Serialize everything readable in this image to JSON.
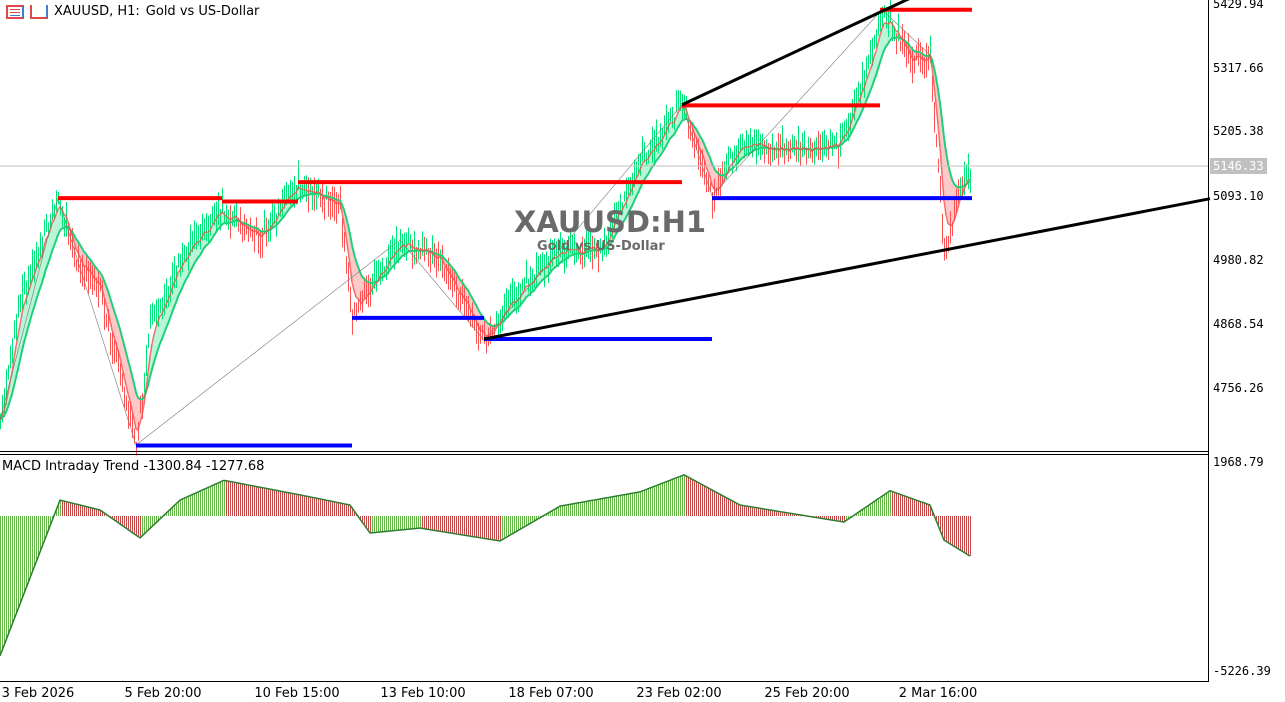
{
  "header": {
    "symbol": "XAUUSD, H1:",
    "description": "Gold vs US-Dollar"
  },
  "watermark": {
    "title": "XAUUSD:H1",
    "subtitle": "Gold vs US-Dollar"
  },
  "price_axis": {
    "ticks": [
      "5429.94",
      "5317.66",
      "5205.38",
      "5093.10",
      "4980.82",
      "4868.54",
      "4756.26"
    ],
    "current": "5146.33"
  },
  "macd": {
    "label": "MACD Intraday Trend  -1300.84 -1277.68",
    "axis_top": "1968.79",
    "axis_bottom": "-5226.39"
  },
  "time_axis": [
    "3 Feb 2026",
    "5 Feb 20:00",
    "10 Feb 15:00",
    "13 Feb 10:00",
    "18 Feb 07:00",
    "23 Feb 02:00",
    "25 Feb 20:00",
    "2 Mar 16:00"
  ],
  "colors": {
    "bull": "#00e676",
    "bear": "#ff5252",
    "cloud_bull": "#b9f6d8",
    "cloud_bear": "#ffc9c9",
    "resistance": "#ff0000",
    "support": "#0000ff",
    "trend": "#000000",
    "macd_up": "#3ea51c",
    "macd_down": "#b71c1c"
  },
  "chart_data": {
    "type": "line",
    "price_range": [
      4660,
      5430
    ],
    "swings": [
      [
        0,
        4704
      ],
      [
        10,
        4913
      ],
      [
        29,
        5091
      ],
      [
        38,
        4983
      ],
      [
        50,
        4931
      ],
      [
        68,
        4660
      ],
      [
        75,
        4861
      ],
      [
        90,
        4983
      ],
      [
        110,
        5070
      ],
      [
        130,
        5027
      ],
      [
        149,
        5119
      ],
      [
        170,
        5070
      ],
      [
        176,
        4882
      ],
      [
        200,
        5018
      ],
      [
        220,
        4983
      ],
      [
        242,
        4843
      ],
      [
        260,
        4931
      ],
      [
        280,
        5000
      ],
      [
        300,
        5000
      ],
      [
        320,
        5158
      ],
      [
        341,
        5254
      ],
      [
        356,
        5095
      ],
      [
        370,
        5193
      ],
      [
        385,
        5175
      ],
      [
        420,
        5184
      ],
      [
        435,
        5332
      ],
      [
        441,
        5420
      ],
      [
        455,
        5332
      ],
      [
        465,
        5341
      ],
      [
        472,
        5000
      ],
      [
        480,
        5105
      ],
      [
        485,
        5140
      ]
    ],
    "resistance_levels": [
      [
        29,
        111,
        5091
      ],
      [
        111,
        149,
        5085
      ],
      [
        149,
        341,
        5119
      ],
      [
        341,
        440,
        5253
      ],
      [
        440,
        486,
        5420
      ]
    ],
    "support_levels": [
      [
        68,
        176,
        4659
      ],
      [
        176,
        242,
        4882
      ],
      [
        242,
        356,
        4845
      ],
      [
        356,
        486,
        5091
      ]
    ],
    "trend_lines": [
      [
        341,
        5254,
        455,
        5440
      ],
      [
        242,
        4845,
        605,
        5090
      ]
    ],
    "macd_points": [
      [
        0,
        -5100
      ],
      [
        30,
        580
      ],
      [
        50,
        220
      ],
      [
        70,
        -800
      ],
      [
        90,
        580
      ],
      [
        112,
        1300
      ],
      [
        150,
        770
      ],
      [
        175,
        400
      ],
      [
        185,
        -620
      ],
      [
        210,
        -440
      ],
      [
        250,
        -910
      ],
      [
        280,
        360
      ],
      [
        320,
        880
      ],
      [
        342,
        1500
      ],
      [
        370,
        400
      ],
      [
        400,
        40
      ],
      [
        422,
        -220
      ],
      [
        445,
        920
      ],
      [
        465,
        400
      ],
      [
        472,
        -880
      ],
      [
        485,
        -1460
      ]
    ]
  }
}
